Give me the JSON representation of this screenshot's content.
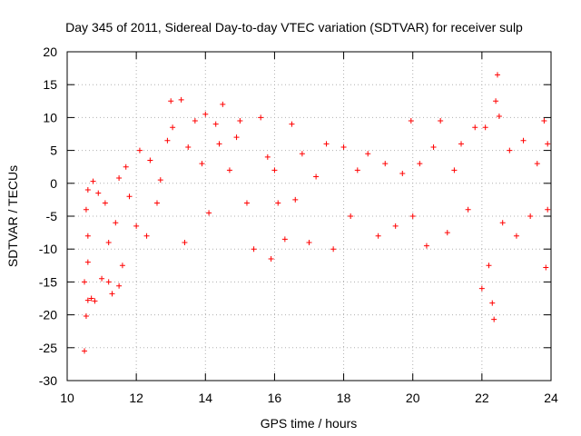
{
  "chart_data": {
    "type": "scatter",
    "title": "Day 345 of 2011, Sidereal Day-to-day VTEC variation (SDTVAR) for receiver sulp",
    "xlabel": "GPS time / hours",
    "ylabel": "SDTVAR / TECUs",
    "xlim": [
      10,
      24
    ],
    "ylim": [
      -30,
      20
    ],
    "xticks": [
      10,
      12,
      14,
      16,
      18,
      20,
      22,
      24
    ],
    "yticks": [
      -30,
      -25,
      -20,
      -15,
      -10,
      -5,
      0,
      5,
      10,
      15,
      20
    ],
    "grid": true,
    "marker": "+",
    "color": "#ff0000",
    "series": [
      {
        "name": "SDTVAR",
        "points": [
          [
            10.5,
            -25.5
          ],
          [
            10.55,
            -20.2
          ],
          [
            10.6,
            -17.8
          ],
          [
            10.7,
            -17.5
          ],
          [
            10.8,
            -17.9
          ],
          [
            10.5,
            -15.0
          ],
          [
            10.6,
            -12.0
          ],
          [
            10.6,
            -8.0
          ],
          [
            10.55,
            -4.0
          ],
          [
            10.6,
            -1.0
          ],
          [
            10.75,
            0.3
          ],
          [
            10.9,
            -1.5
          ],
          [
            11.0,
            -14.5
          ],
          [
            11.2,
            -15.0
          ],
          [
            11.3,
            -16.8
          ],
          [
            11.5,
            -15.6
          ],
          [
            11.6,
            -12.5
          ],
          [
            11.2,
            -9.0
          ],
          [
            11.4,
            -6.0
          ],
          [
            11.1,
            -3.0
          ],
          [
            11.5,
            0.8
          ],
          [
            11.7,
            2.5
          ],
          [
            11.8,
            -2.0
          ],
          [
            12.0,
            -6.5
          ],
          [
            12.1,
            5.0
          ],
          [
            12.3,
            -8.0
          ],
          [
            12.4,
            3.5
          ],
          [
            12.6,
            -3.0
          ],
          [
            12.7,
            0.5
          ],
          [
            12.9,
            6.5
          ],
          [
            13.0,
            12.5
          ],
          [
            13.05,
            8.5
          ],
          [
            13.3,
            12.7
          ],
          [
            13.4,
            -9.0
          ],
          [
            13.5,
            5.5
          ],
          [
            13.7,
            9.5
          ],
          [
            13.9,
            3.0
          ],
          [
            14.1,
            -4.5
          ],
          [
            14.0,
            10.5
          ],
          [
            14.3,
            9.0
          ],
          [
            14.4,
            6.0
          ],
          [
            14.5,
            12.0
          ],
          [
            14.7,
            2.0
          ],
          [
            14.9,
            7.0
          ],
          [
            15.0,
            9.5
          ],
          [
            15.2,
            -3.0
          ],
          [
            15.4,
            -10.0
          ],
          [
            15.6,
            10.0
          ],
          [
            15.8,
            4.0
          ],
          [
            15.9,
            -11.5
          ],
          [
            16.0,
            2.0
          ],
          [
            16.1,
            -3.0
          ],
          [
            16.3,
            -8.5
          ],
          [
            16.5,
            9.0
          ],
          [
            16.6,
            -2.5
          ],
          [
            16.8,
            4.5
          ],
          [
            17.0,
            -9.0
          ],
          [
            17.2,
            1.0
          ],
          [
            17.5,
            6.0
          ],
          [
            17.7,
            -10.0
          ],
          [
            18.0,
            5.5
          ],
          [
            18.2,
            -5.0
          ],
          [
            18.4,
            2.0
          ],
          [
            18.7,
            4.5
          ],
          [
            19.0,
            -8.0
          ],
          [
            19.2,
            3.0
          ],
          [
            19.5,
            -6.5
          ],
          [
            19.7,
            1.5
          ],
          [
            19.95,
            9.5
          ],
          [
            20.0,
            -5.0
          ],
          [
            20.2,
            3.0
          ],
          [
            20.4,
            -9.5
          ],
          [
            20.6,
            5.5
          ],
          [
            20.8,
            9.5
          ],
          [
            21.0,
            -7.5
          ],
          [
            21.2,
            2.0
          ],
          [
            21.4,
            6.0
          ],
          [
            21.6,
            -4.0
          ],
          [
            21.8,
            8.5
          ],
          [
            22.0,
            -16.0
          ],
          [
            22.1,
            8.5
          ],
          [
            22.2,
            -12.5
          ],
          [
            22.3,
            -18.2
          ],
          [
            22.35,
            -20.7
          ],
          [
            22.4,
            12.5
          ],
          [
            22.45,
            16.5
          ],
          [
            22.5,
            10.2
          ],
          [
            22.6,
            -6.0
          ],
          [
            22.8,
            5.0
          ],
          [
            23.0,
            -8.0
          ],
          [
            23.2,
            6.5
          ],
          [
            23.4,
            -5.0
          ],
          [
            23.6,
            3.0
          ],
          [
            23.8,
            9.5
          ],
          [
            23.85,
            -12.8
          ],
          [
            23.9,
            6.0
          ],
          [
            23.9,
            -4.0
          ]
        ]
      }
    ]
  }
}
